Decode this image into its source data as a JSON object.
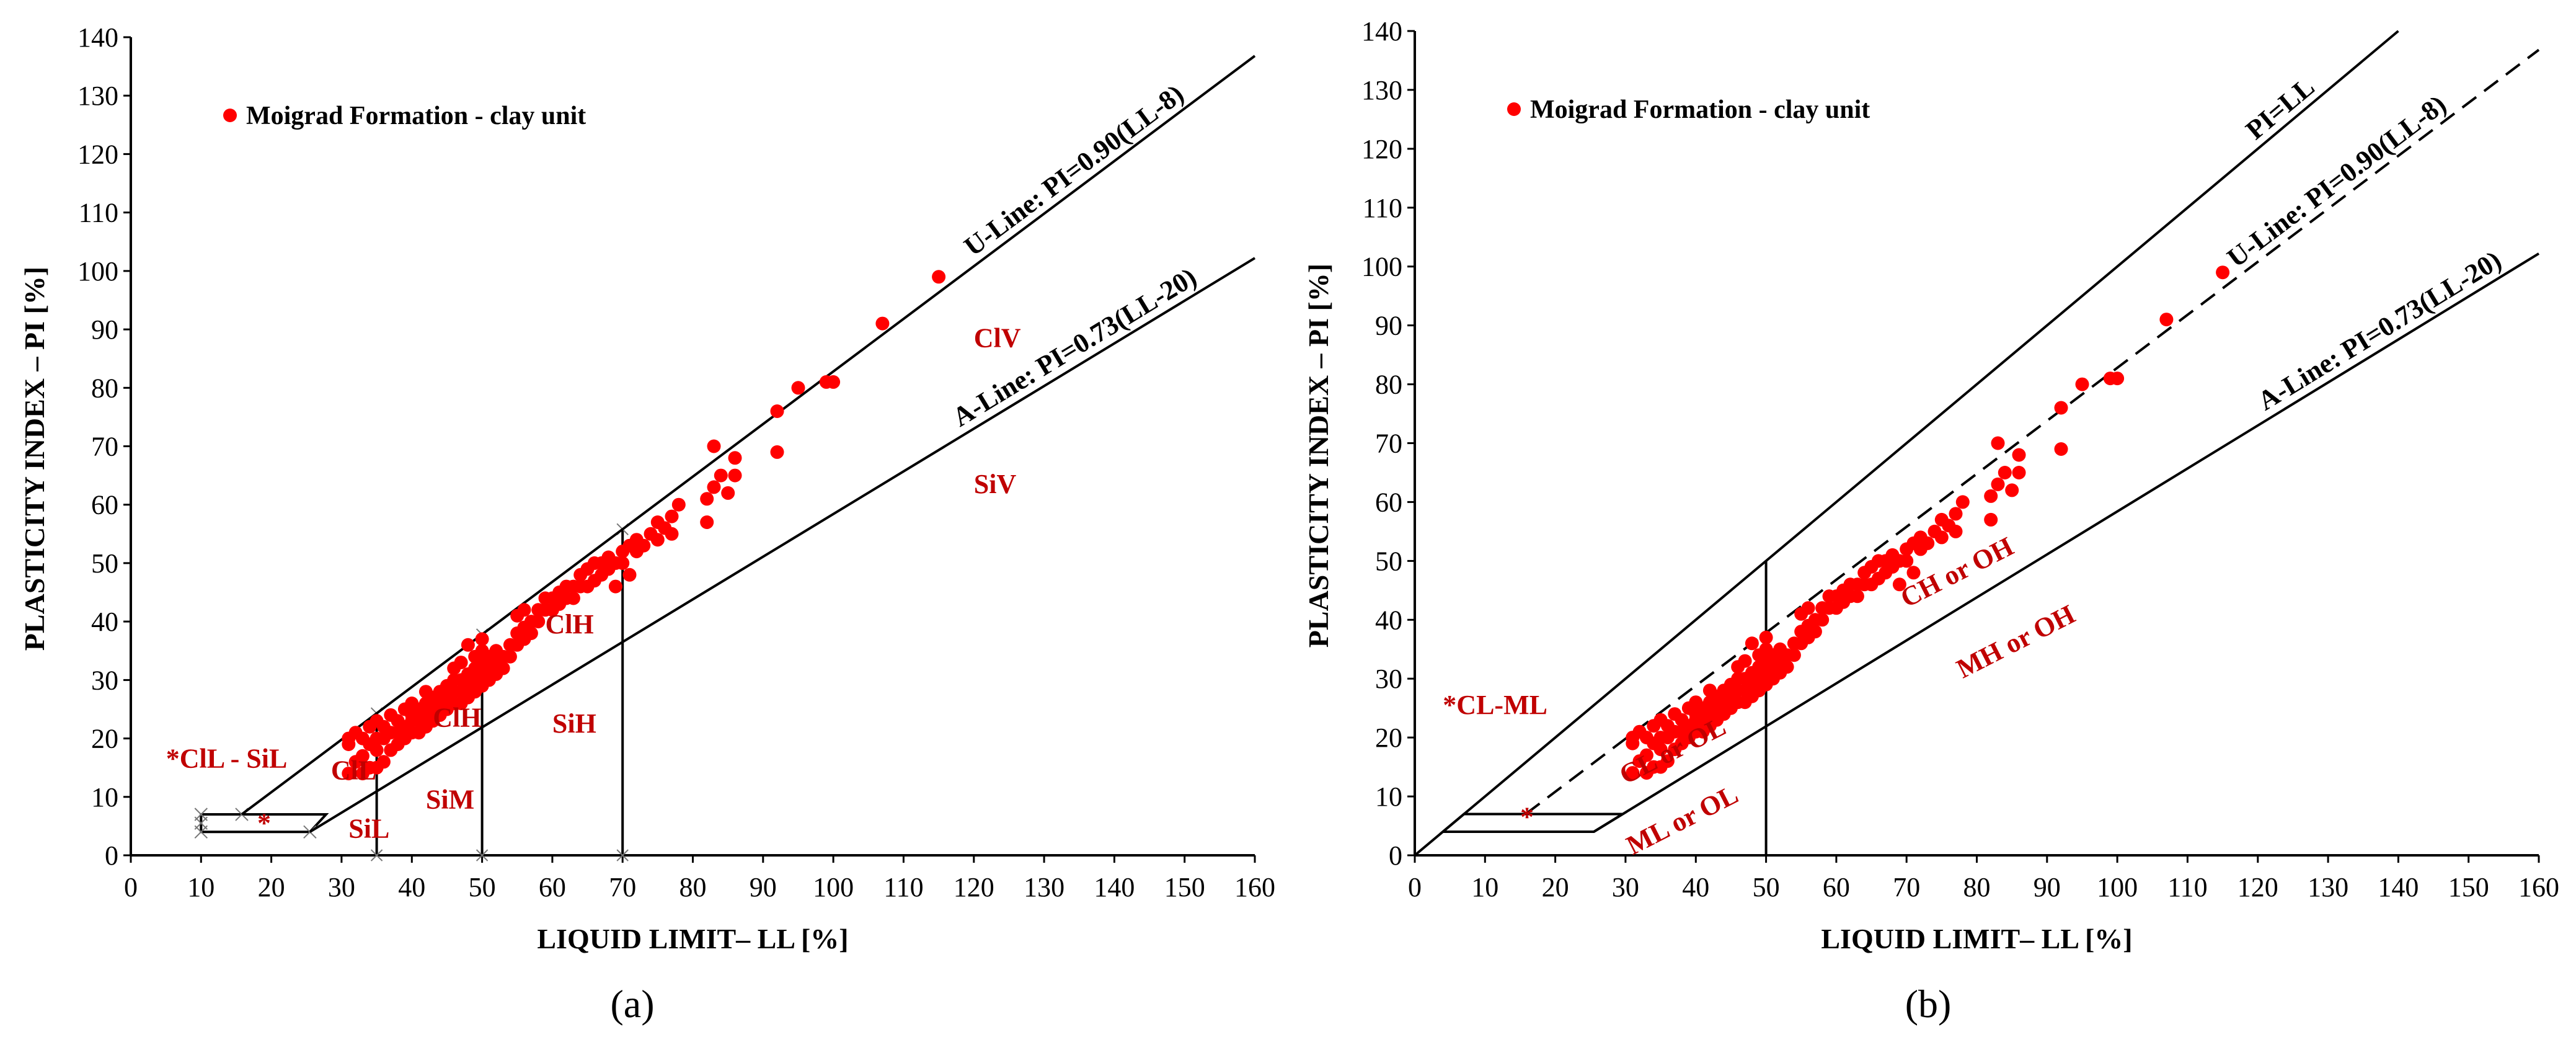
{
  "figure": {
    "captions": [
      "(a)",
      "(b)"
    ]
  },
  "chart_data": [
    {
      "type": "scatter",
      "panel": "a",
      "caption": "(a)",
      "xlabel": "LIQUID LIMIT– LL [%]",
      "ylabel": "PLASTICITY INDEX – PI [%]",
      "xlim": [
        0,
        160
      ],
      "ylim": [
        0,
        140
      ],
      "xticks": [
        0,
        10,
        20,
        30,
        40,
        50,
        60,
        70,
        80,
        90,
        100,
        110,
        120,
        130,
        140,
        150,
        160
      ],
      "yticks": [
        0,
        10,
        20,
        30,
        40,
        50,
        60,
        70,
        80,
        90,
        100,
        110,
        120,
        130,
        140
      ],
      "grid": false,
      "legend": {
        "position": "top-left",
        "label": "Moigrad Formation - clay unit",
        "color": "#ff0000"
      },
      "lines": [
        {
          "name": "U-Line",
          "label": "U-Line: PI=0.90(LL-8)",
          "slope": 0.9,
          "intercept_ll": 8,
          "x_range": [
            15.8,
            160
          ],
          "style": "solid"
        },
        {
          "name": "A-Line",
          "label": "A-Line: PI=0.73(LL-20)",
          "slope": 0.73,
          "intercept_ll": 20,
          "x_range": [
            25.5,
            160
          ],
          "style": "solid"
        }
      ],
      "verticals": [
        35,
        50,
        70
      ],
      "zone_labels": [
        {
          "text": "ClV",
          "x": 120,
          "y": 87
        },
        {
          "text": "SiV",
          "x": 120,
          "y": 62
        },
        {
          "text": "ClH",
          "x": 59,
          "y": 38
        },
        {
          "text": "ClH",
          "x": 43,
          "y": 22
        },
        {
          "text": "SiH",
          "x": 60,
          "y": 21
        },
        {
          "text": "ClL",
          "x": 28.5,
          "y": 13
        },
        {
          "text": "SiM",
          "x": 42,
          "y": 8
        },
        {
          "text": "SiL",
          "x": 31,
          "y": 3
        },
        {
          "text": "*ClL - SiL",
          "x": 5,
          "y": 15
        },
        {
          "text": "*",
          "x": 18,
          "y": 4
        }
      ],
      "points": [
        [
          31,
          14
        ],
        [
          31,
          19
        ],
        [
          31,
          20
        ],
        [
          32,
          16
        ],
        [
          32,
          21
        ],
        [
          33,
          14
        ],
        [
          33,
          17
        ],
        [
          33,
          20
        ],
        [
          34,
          15
        ],
        [
          34,
          19
        ],
        [
          34,
          22
        ],
        [
          35,
          15
        ],
        [
          35,
          18
        ],
        [
          35,
          20
        ],
        [
          35,
          23
        ],
        [
          36,
          16
        ],
        [
          36,
          20
        ],
        [
          36,
          22
        ],
        [
          37,
          18
        ],
        [
          37,
          21
        ],
        [
          37,
          24
        ],
        [
          38,
          19
        ],
        [
          38,
          21
        ],
        [
          38,
          23
        ],
        [
          39,
          20
        ],
        [
          39,
          22
        ],
        [
          39,
          25
        ],
        [
          40,
          21
        ],
        [
          40,
          23
        ],
        [
          40,
          24
        ],
        [
          40,
          26
        ],
        [
          41,
          21
        ],
        [
          41,
          23
        ],
        [
          41,
          25
        ],
        [
          42,
          22
        ],
        [
          42,
          24
        ],
        [
          42,
          26
        ],
        [
          42,
          28
        ],
        [
          43,
          23
        ],
        [
          43,
          25
        ],
        [
          43,
          27
        ],
        [
          44,
          24
        ],
        [
          44,
          26
        ],
        [
          44,
          28
        ],
        [
          45,
          25
        ],
        [
          45,
          27
        ],
        [
          45,
          29
        ],
        [
          46,
          26
        ],
        [
          46,
          28
        ],
        [
          46,
          30
        ],
        [
          46,
          32
        ],
        [
          47,
          26
        ],
        [
          47,
          28
        ],
        [
          47,
          30
        ],
        [
          47,
          33
        ],
        [
          48,
          27
        ],
        [
          48,
          29
        ],
        [
          48,
          31
        ],
        [
          48,
          36
        ],
        [
          49,
          28
        ],
        [
          49,
          30
        ],
        [
          49,
          32
        ],
        [
          49,
          34
        ],
        [
          50,
          29
        ],
        [
          50,
          31
        ],
        [
          50,
          33
        ],
        [
          50,
          35
        ],
        [
          50,
          37
        ],
        [
          51,
          30
        ],
        [
          51,
          32
        ],
        [
          51,
          34
        ],
        [
          52,
          31
        ],
        [
          52,
          33
        ],
        [
          52,
          35
        ],
        [
          53,
          32
        ],
        [
          53,
          34
        ],
        [
          54,
          34
        ],
        [
          54,
          36
        ],
        [
          55,
          36
        ],
        [
          55,
          38
        ],
        [
          55,
          41
        ],
        [
          56,
          37
        ],
        [
          56,
          39
        ],
        [
          56,
          42
        ],
        [
          57,
          38
        ],
        [
          57,
          40
        ],
        [
          58,
          40
        ],
        [
          58,
          42
        ],
        [
          59,
          42
        ],
        [
          59,
          44
        ],
        [
          60,
          42
        ],
        [
          60,
          44
        ],
        [
          61,
          43
        ],
        [
          61,
          45
        ],
        [
          62,
          44
        ],
        [
          62,
          46
        ],
        [
          63,
          44
        ],
        [
          63,
          46
        ],
        [
          64,
          46
        ],
        [
          64,
          48
        ],
        [
          65,
          46
        ],
        [
          65,
          49
        ],
        [
          66,
          47
        ],
        [
          66,
          50
        ],
        [
          67,
          48
        ],
        [
          67,
          50
        ],
        [
          68,
          49
        ],
        [
          68,
          51
        ],
        [
          69,
          46
        ],
        [
          69,
          50
        ],
        [
          70,
          50
        ],
        [
          70,
          52
        ],
        [
          71,
          48
        ],
        [
          71,
          53
        ],
        [
          72,
          52
        ],
        [
          72,
          54
        ],
        [
          73,
          53
        ],
        [
          74,
          55
        ],
        [
          75,
          54
        ],
        [
          75,
          57
        ],
        [
          76,
          56
        ],
        [
          77,
          55
        ],
        [
          77,
          58
        ],
        [
          78,
          60
        ],
        [
          82,
          57
        ],
        [
          82,
          61
        ],
        [
          83,
          63
        ],
        [
          83,
          70
        ],
        [
          84,
          65
        ],
        [
          85,
          62
        ],
        [
          86,
          65
        ],
        [
          86,
          68
        ],
        [
          92,
          69
        ],
        [
          92,
          76
        ],
        [
          95,
          80
        ],
        [
          99,
          81
        ],
        [
          100,
          81
        ],
        [
          107,
          91
        ],
        [
          115,
          99
        ]
      ]
    },
    {
      "type": "scatter",
      "panel": "b",
      "caption": "(b)",
      "xlabel": "LIQUID LIMIT– LL [%]",
      "ylabel": "PLASTICITY INDEX – PI [%]",
      "xlim": [
        0,
        160
      ],
      "ylim": [
        0,
        140
      ],
      "xticks": [
        0,
        10,
        20,
        30,
        40,
        50,
        60,
        70,
        80,
        90,
        100,
        110,
        120,
        130,
        140,
        150,
        160
      ],
      "yticks": [
        0,
        10,
        20,
        30,
        40,
        50,
        60,
        70,
        80,
        90,
        100,
        110,
        120,
        130,
        140
      ],
      "grid": false,
      "legend": {
        "position": "top-left",
        "label": "Moigrad Formation - clay unit",
        "color": "#ff0000"
      },
      "lines": [
        {
          "name": "PI=LL",
          "label": "PI=LL",
          "slope": 1.0,
          "intercept_ll": 0,
          "x_range": [
            0,
            140
          ],
          "style": "solid"
        },
        {
          "name": "U-Line",
          "label": "U-Line: PI=0.90(LL-8)",
          "slope": 0.9,
          "intercept_ll": 8,
          "x_range": [
            15.8,
            160
          ],
          "style": "dashed"
        },
        {
          "name": "A-Line",
          "label": "A-Line: PI=0.73(LL-20)",
          "slope": 0.73,
          "intercept_ll": 20,
          "x_range": [
            25.5,
            160
          ],
          "style": "solid"
        }
      ],
      "verticals": [
        50
      ],
      "zone_labels": [
        {
          "text": "*CL-ML",
          "x": 4,
          "y": 24
        },
        {
          "text": "*",
          "x": 15,
          "y": 5
        },
        {
          "text": "CL or OL",
          "x": 30,
          "y": 12
        },
        {
          "text": "ML or OL",
          "x": 31,
          "y": 0
        },
        {
          "text": "CH or OH",
          "x": 70,
          "y": 42
        },
        {
          "text": "MH or OH",
          "x": 78,
          "y": 30
        }
      ],
      "points": [
        [
          31,
          14
        ],
        [
          31,
          19
        ],
        [
          31,
          20
        ],
        [
          32,
          16
        ],
        [
          32,
          21
        ],
        [
          33,
          14
        ],
        [
          33,
          17
        ],
        [
          33,
          20
        ],
        [
          34,
          15
        ],
        [
          34,
          19
        ],
        [
          34,
          22
        ],
        [
          35,
          15
        ],
        [
          35,
          18
        ],
        [
          35,
          20
        ],
        [
          35,
          23
        ],
        [
          36,
          16
        ],
        [
          36,
          20
        ],
        [
          36,
          22
        ],
        [
          37,
          18
        ],
        [
          37,
          21
        ],
        [
          37,
          24
        ],
        [
          38,
          19
        ],
        [
          38,
          21
        ],
        [
          38,
          23
        ],
        [
          39,
          20
        ],
        [
          39,
          22
        ],
        [
          39,
          25
        ],
        [
          40,
          21
        ],
        [
          40,
          23
        ],
        [
          40,
          24
        ],
        [
          40,
          26
        ],
        [
          41,
          21
        ],
        [
          41,
          23
        ],
        [
          41,
          25
        ],
        [
          42,
          22
        ],
        [
          42,
          24
        ],
        [
          42,
          26
        ],
        [
          42,
          28
        ],
        [
          43,
          23
        ],
        [
          43,
          25
        ],
        [
          43,
          27
        ],
        [
          44,
          24
        ],
        [
          44,
          26
        ],
        [
          44,
          28
        ],
        [
          45,
          25
        ],
        [
          45,
          27
        ],
        [
          45,
          29
        ],
        [
          46,
          26
        ],
        [
          46,
          28
        ],
        [
          46,
          30
        ],
        [
          46,
          32
        ],
        [
          47,
          26
        ],
        [
          47,
          28
        ],
        [
          47,
          30
        ],
        [
          47,
          33
        ],
        [
          48,
          27
        ],
        [
          48,
          29
        ],
        [
          48,
          31
        ],
        [
          48,
          36
        ],
        [
          49,
          28
        ],
        [
          49,
          30
        ],
        [
          49,
          32
        ],
        [
          49,
          34
        ],
        [
          50,
          29
        ],
        [
          50,
          31
        ],
        [
          50,
          33
        ],
        [
          50,
          35
        ],
        [
          50,
          37
        ],
        [
          51,
          30
        ],
        [
          51,
          32
        ],
        [
          51,
          34
        ],
        [
          52,
          31
        ],
        [
          52,
          33
        ],
        [
          52,
          35
        ],
        [
          53,
          32
        ],
        [
          53,
          34
        ],
        [
          54,
          34
        ],
        [
          54,
          36
        ],
        [
          55,
          36
        ],
        [
          55,
          38
        ],
        [
          55,
          41
        ],
        [
          56,
          37
        ],
        [
          56,
          39
        ],
        [
          56,
          42
        ],
        [
          57,
          38
        ],
        [
          57,
          40
        ],
        [
          58,
          40
        ],
        [
          58,
          42
        ],
        [
          59,
          42
        ],
        [
          59,
          44
        ],
        [
          60,
          42
        ],
        [
          60,
          44
        ],
        [
          61,
          43
        ],
        [
          61,
          45
        ],
        [
          62,
          44
        ],
        [
          62,
          46
        ],
        [
          63,
          44
        ],
        [
          63,
          46
        ],
        [
          64,
          46
        ],
        [
          64,
          48
        ],
        [
          65,
          46
        ],
        [
          65,
          49
        ],
        [
          66,
          47
        ],
        [
          66,
          50
        ],
        [
          67,
          48
        ],
        [
          67,
          50
        ],
        [
          68,
          49
        ],
        [
          68,
          51
        ],
        [
          69,
          46
        ],
        [
          69,
          50
        ],
        [
          70,
          50
        ],
        [
          70,
          52
        ],
        [
          71,
          48
        ],
        [
          71,
          53
        ],
        [
          72,
          52
        ],
        [
          72,
          54
        ],
        [
          73,
          53
        ],
        [
          74,
          55
        ],
        [
          75,
          54
        ],
        [
          75,
          57
        ],
        [
          76,
          56
        ],
        [
          77,
          55
        ],
        [
          77,
          58
        ],
        [
          78,
          60
        ],
        [
          82,
          57
        ],
        [
          82,
          61
        ],
        [
          83,
          63
        ],
        [
          83,
          70
        ],
        [
          84,
          65
        ],
        [
          85,
          62
        ],
        [
          86,
          65
        ],
        [
          86,
          68
        ],
        [
          92,
          69
        ],
        [
          92,
          76
        ],
        [
          95,
          80
        ],
        [
          99,
          81
        ],
        [
          100,
          81
        ],
        [
          107,
          91
        ],
        [
          115,
          99
        ]
      ]
    }
  ]
}
